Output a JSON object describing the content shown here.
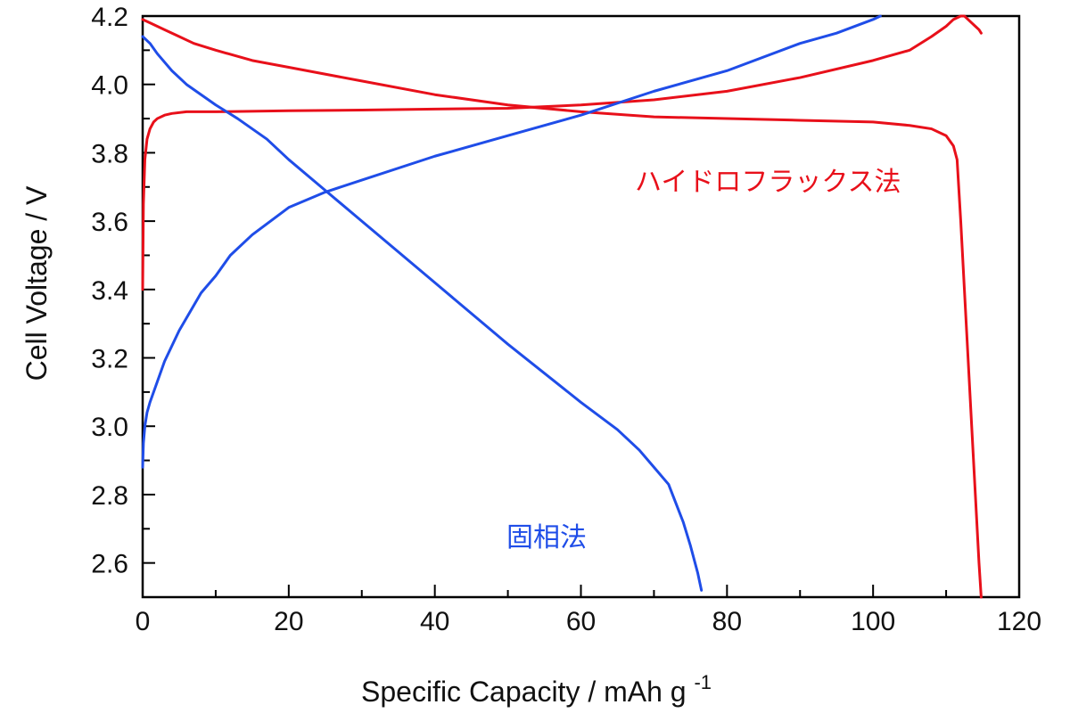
{
  "chart_data": {
    "type": "line",
    "xlabel": "Specific Capacity / mAh g",
    "xlabel_sup": "-1",
    "ylabel": "Cell Voltage / V",
    "xlim": [
      0,
      120
    ],
    "ylim": [
      2.5,
      4.2
    ],
    "x_ticks": [
      "0",
      "20",
      "40",
      "60",
      "80",
      "100",
      "120"
    ],
    "y_ticks": [
      "2.6",
      "2.8",
      "3.0",
      "3.2",
      "3.4",
      "3.6",
      "3.8",
      "4.0",
      "4.2"
    ],
    "grid": false,
    "legend": "none",
    "annotations": [
      {
        "text": "ハイドロフラックス法",
        "color": "#e8101a"
      },
      {
        "text": "固相法",
        "color": "#1f4de8"
      }
    ],
    "series": [
      {
        "color": "#e8101a",
        "x": [
          0,
          0.1,
          0.3,
          0.6,
          1,
          1.5,
          2,
          3,
          4,
          6,
          10,
          20,
          30,
          40,
          50,
          60,
          70,
          80,
          90,
          100,
          105,
          108,
          110,
          111,
          112,
          112.5,
          113,
          113.5,
          114,
          114.5,
          114.8
        ],
        "y": [
          3.4,
          3.65,
          3.78,
          3.84,
          3.87,
          3.89,
          3.9,
          3.91,
          3.915,
          3.92,
          3.92,
          3.923,
          3.925,
          3.928,
          3.93,
          3.94,
          3.955,
          3.98,
          4.02,
          4.07,
          4.1,
          4.14,
          4.17,
          4.19,
          4.2,
          4.2,
          4.19,
          4.18,
          4.17,
          4.16,
          4.15
        ]
      },
      {
        "color": "#e8101a",
        "x": [
          0,
          1,
          3,
          5,
          7,
          10,
          15,
          20,
          30,
          40,
          50,
          60,
          70,
          80,
          90,
          100,
          105,
          108,
          110,
          111,
          111.5,
          112,
          112.5,
          113,
          113.5,
          114,
          114.5,
          114.8
        ],
        "y": [
          4.19,
          4.18,
          4.16,
          4.14,
          4.12,
          4.1,
          4.07,
          4.05,
          4.01,
          3.97,
          3.94,
          3.92,
          3.905,
          3.9,
          3.895,
          3.89,
          3.88,
          3.87,
          3.85,
          3.82,
          3.78,
          3.6,
          3.4,
          3.2,
          3.0,
          2.8,
          2.6,
          2.5
        ]
      },
      {
        "color": "#1f4de8",
        "x": [
          0,
          0.1,
          0.3,
          0.6,
          1,
          2,
          3,
          5,
          8,
          10,
          12,
          15,
          20,
          25,
          30,
          40,
          50,
          60,
          70,
          80,
          90,
          95,
          100,
          101
        ],
        "y": [
          2.88,
          2.95,
          3.0,
          3.04,
          3.07,
          3.13,
          3.19,
          3.28,
          3.39,
          3.44,
          3.5,
          3.56,
          3.64,
          3.685,
          3.72,
          3.79,
          3.85,
          3.91,
          3.98,
          4.04,
          4.12,
          4.15,
          4.19,
          4.2
        ]
      },
      {
        "color": "#1f4de8",
        "x": [
          0,
          1,
          2,
          4,
          6,
          8,
          10,
          13,
          17,
          20,
          25,
          30,
          40,
          50,
          60,
          65,
          68,
          70,
          72,
          74,
          75,
          76,
          76.5
        ],
        "y": [
          4.14,
          4.12,
          4.09,
          4.04,
          4.0,
          3.97,
          3.94,
          3.9,
          3.84,
          3.78,
          3.69,
          3.6,
          3.42,
          3.24,
          3.07,
          2.99,
          2.93,
          2.88,
          2.83,
          2.72,
          2.65,
          2.57,
          2.52
        ]
      }
    ]
  }
}
